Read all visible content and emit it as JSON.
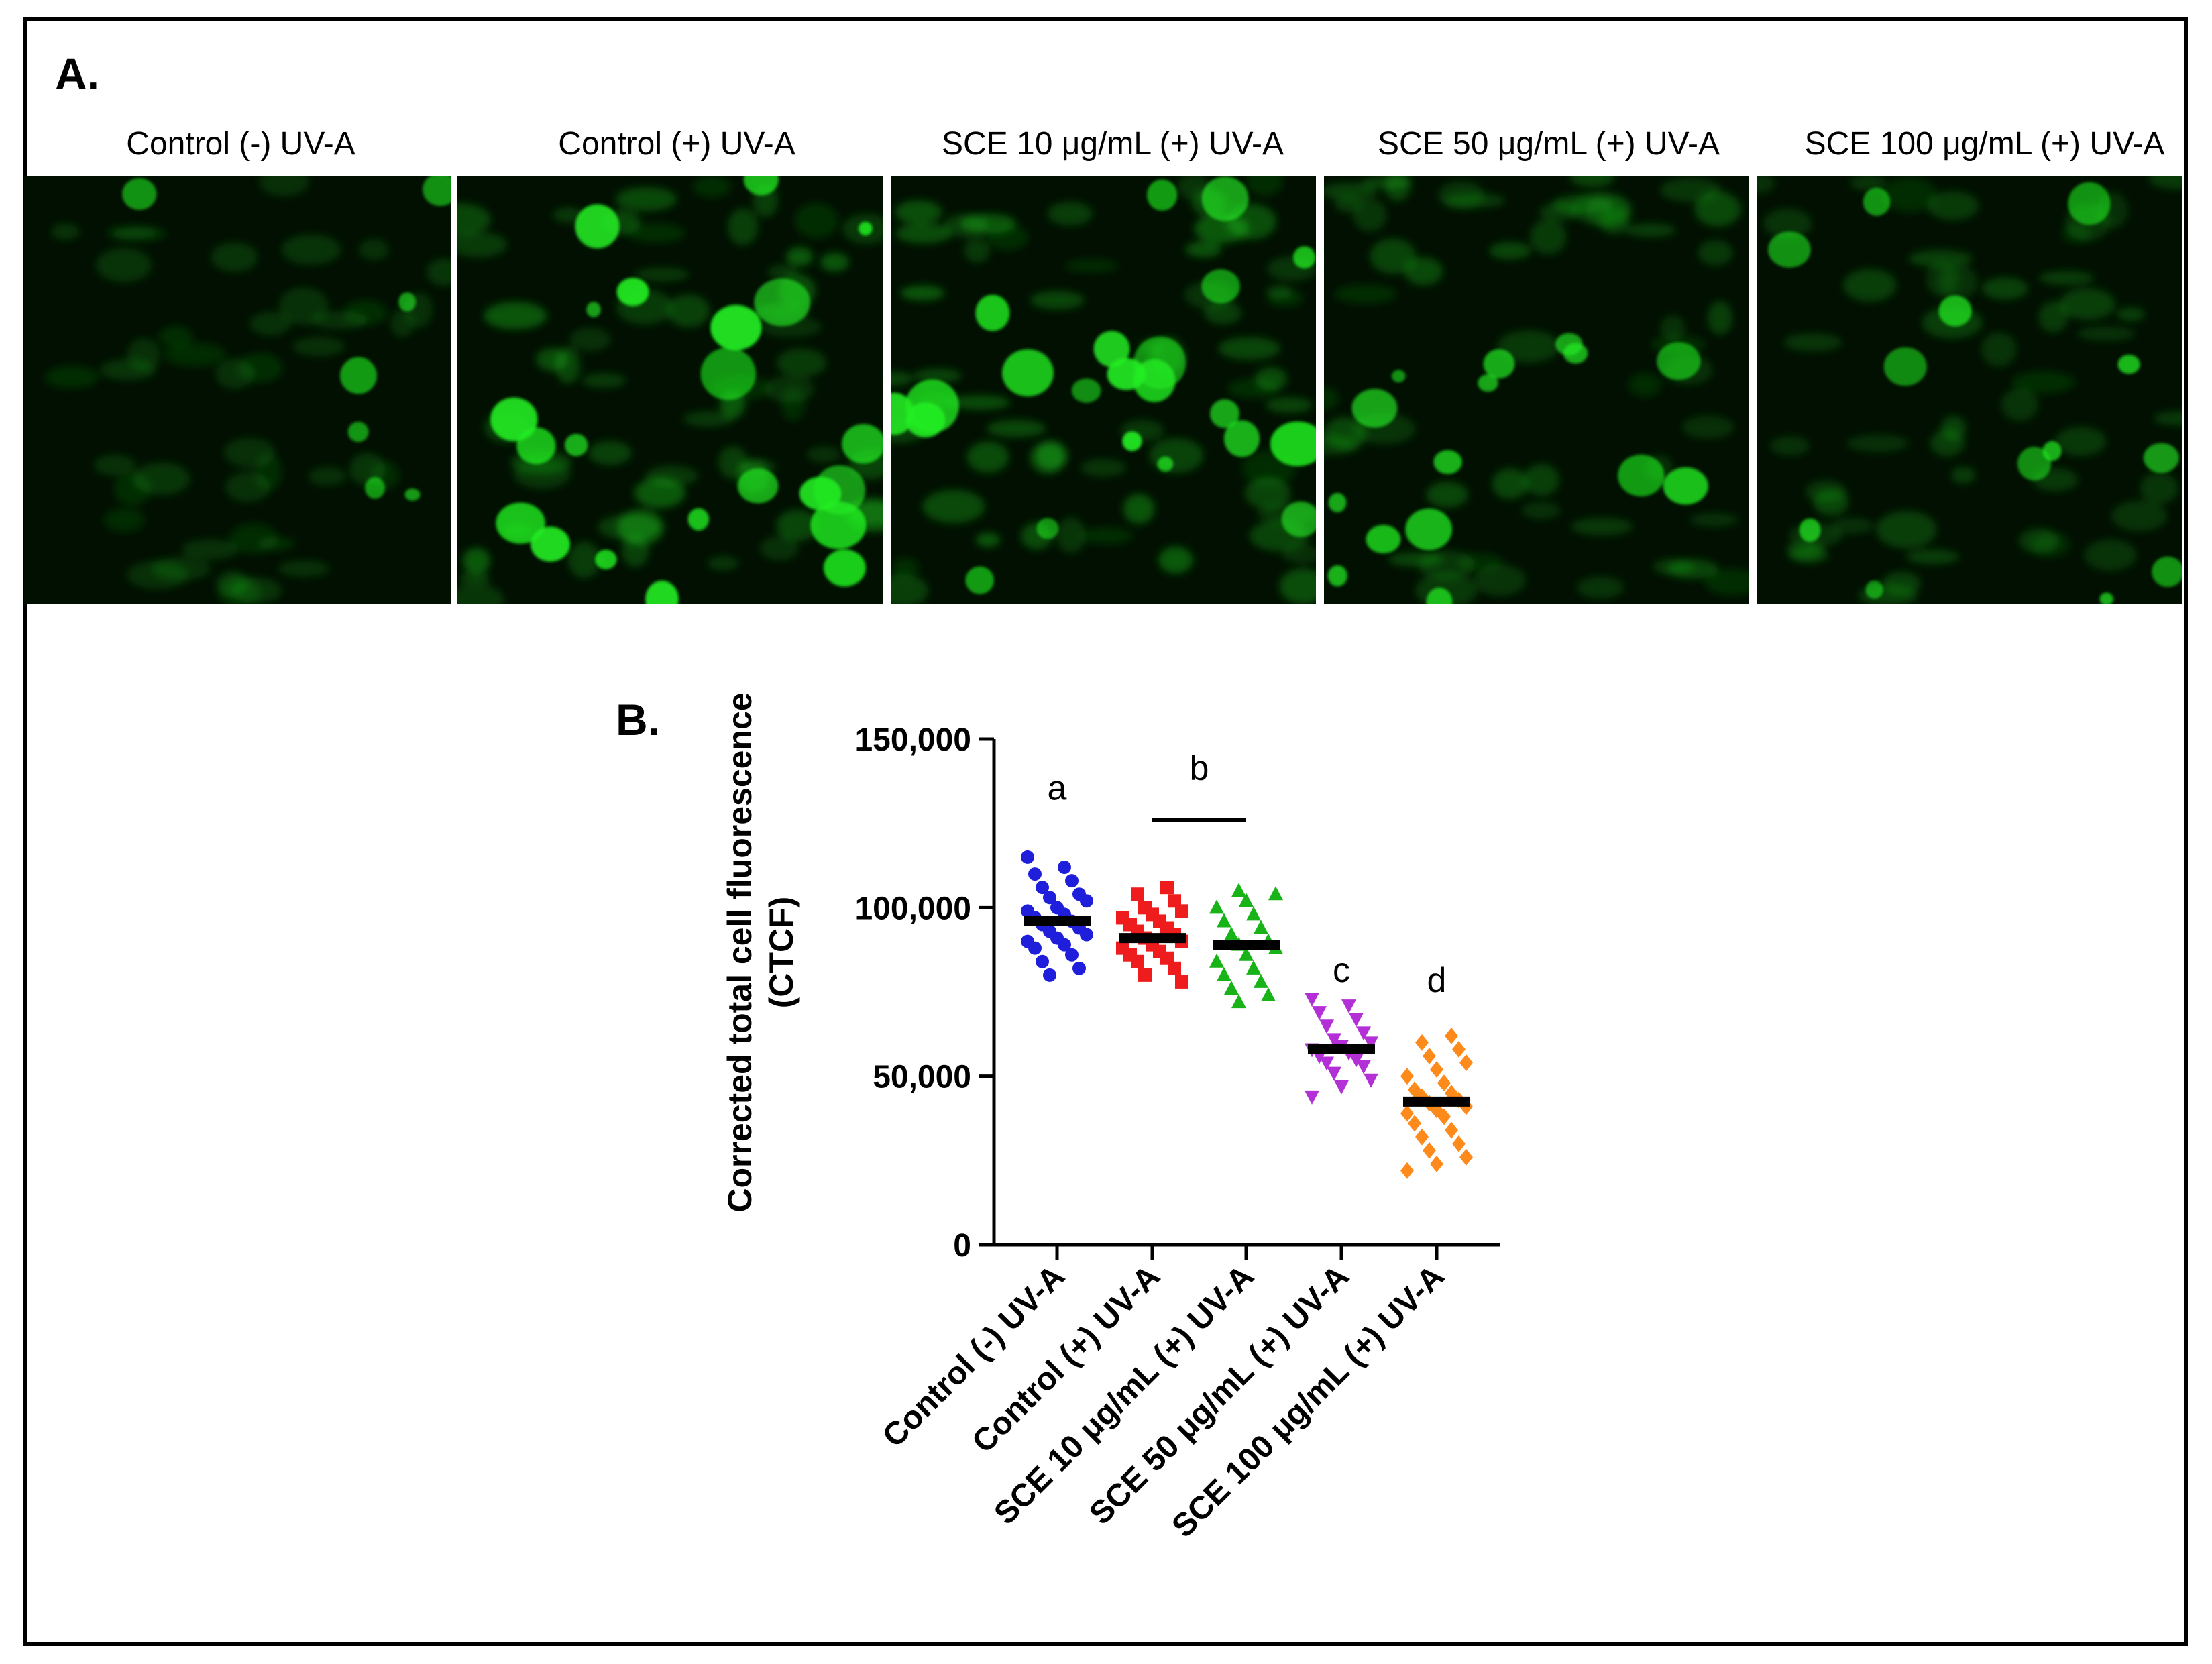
{
  "panel_a": {
    "letter": "A.",
    "images": [
      {
        "label": "Control (-) UV-A",
        "brightness": 0.2
      },
      {
        "label": "Control (+) UV-A",
        "brightness": 0.85
      },
      {
        "label": "SCE 10 μg/mL (+) UV-A",
        "brightness": 0.85
      },
      {
        "label": "SCE 50 μg/mL (+) UV-A",
        "brightness": 0.55
      },
      {
        "label": "SCE 100 μg/mL (+) UV-A",
        "brightness": 0.45
      }
    ]
  },
  "panel_b": {
    "letter": "B."
  },
  "colors": {
    "control_minus": "#1f1fdb",
    "control_plus": "#ee1c1c",
    "sce10": "#17b317",
    "sce50": "#b32fd6",
    "sce100": "#ff8a1c",
    "cell_green": "#22ee22"
  },
  "chart_data": {
    "type": "scatter",
    "ylabel": "Corrected total cell fluorescence (CTCF)",
    "ylabel_line1": "Corrected total cell fluorescence",
    "ylabel_line2": "(CTCF)",
    "ylim": [
      0,
      150000
    ],
    "yticks": [
      0,
      50000,
      100000,
      150000
    ],
    "ytick_labels": [
      "0",
      "50,000",
      "100,000",
      "150,000"
    ],
    "categories": [
      "Control (-) UV-A",
      "Control (+) UV-A",
      "SCE 10 μg/mL (+) UV-A",
      "SCE 50 μg/mL (+) UV-A",
      "SCE 100 μg/mL (+) UV-A"
    ],
    "series": [
      {
        "marker": "circle",
        "color": "#1f1fdb",
        "mean": 96000,
        "values": [
          115000,
          112000,
          110000,
          108000,
          106000,
          104000,
          103000,
          102000,
          100000,
          99000,
          98000,
          97000,
          96000,
          95000,
          94000,
          93000,
          92000,
          91000,
          90000,
          89000,
          88000,
          86000,
          84000,
          82000,
          80000
        ]
      },
      {
        "marker": "square",
        "color": "#ee1c1c",
        "mean": 91000,
        "values": [
          106000,
          104000,
          102000,
          100000,
          99000,
          98000,
          97000,
          96000,
          95000,
          94000,
          93000,
          92000,
          91000,
          90000,
          89000,
          88000,
          87000,
          86000,
          85000,
          84000,
          82000,
          80000,
          78000
        ]
      },
      {
        "marker": "triangle-up",
        "color": "#17b317",
        "mean": 89000,
        "values": [
          105000,
          104000,
          102000,
          100000,
          98000,
          96000,
          94000,
          92000,
          90000,
          89000,
          88000,
          86000,
          84000,
          82000,
          80000,
          78000,
          76000,
          74000,
          72000
        ]
      },
      {
        "marker": "triangle-down",
        "color": "#b32fd6",
        "mean": 58000,
        "values": [
          73000,
          71000,
          69000,
          67000,
          65000,
          63000,
          61000,
          60000,
          59000,
          58000,
          57000,
          56000,
          55000,
          54000,
          53000,
          51000,
          49000,
          47000,
          44000
        ]
      },
      {
        "marker": "diamond",
        "color": "#ff8a1c",
        "mean": 42500,
        "values": [
          62000,
          60000,
          58000,
          56000,
          54000,
          52000,
          50000,
          48000,
          46000,
          45000,
          44000,
          43000,
          42000,
          41000,
          40000,
          39000,
          38000,
          36000,
          34000,
          32000,
          30000,
          28000,
          26000,
          24000,
          22000
        ]
      }
    ],
    "annotations": [
      {
        "text": "a",
        "category_index": 0,
        "y": 132000
      },
      {
        "text": "b",
        "category_index": 1.5,
        "y": 138000
      },
      {
        "text": "c",
        "category_index": 3,
        "y": 78000
      },
      {
        "text": "d",
        "category_index": 4,
        "y": 75000
      }
    ],
    "bracket": {
      "from_index": 1,
      "to_index": 2,
      "y": 126000
    }
  }
}
